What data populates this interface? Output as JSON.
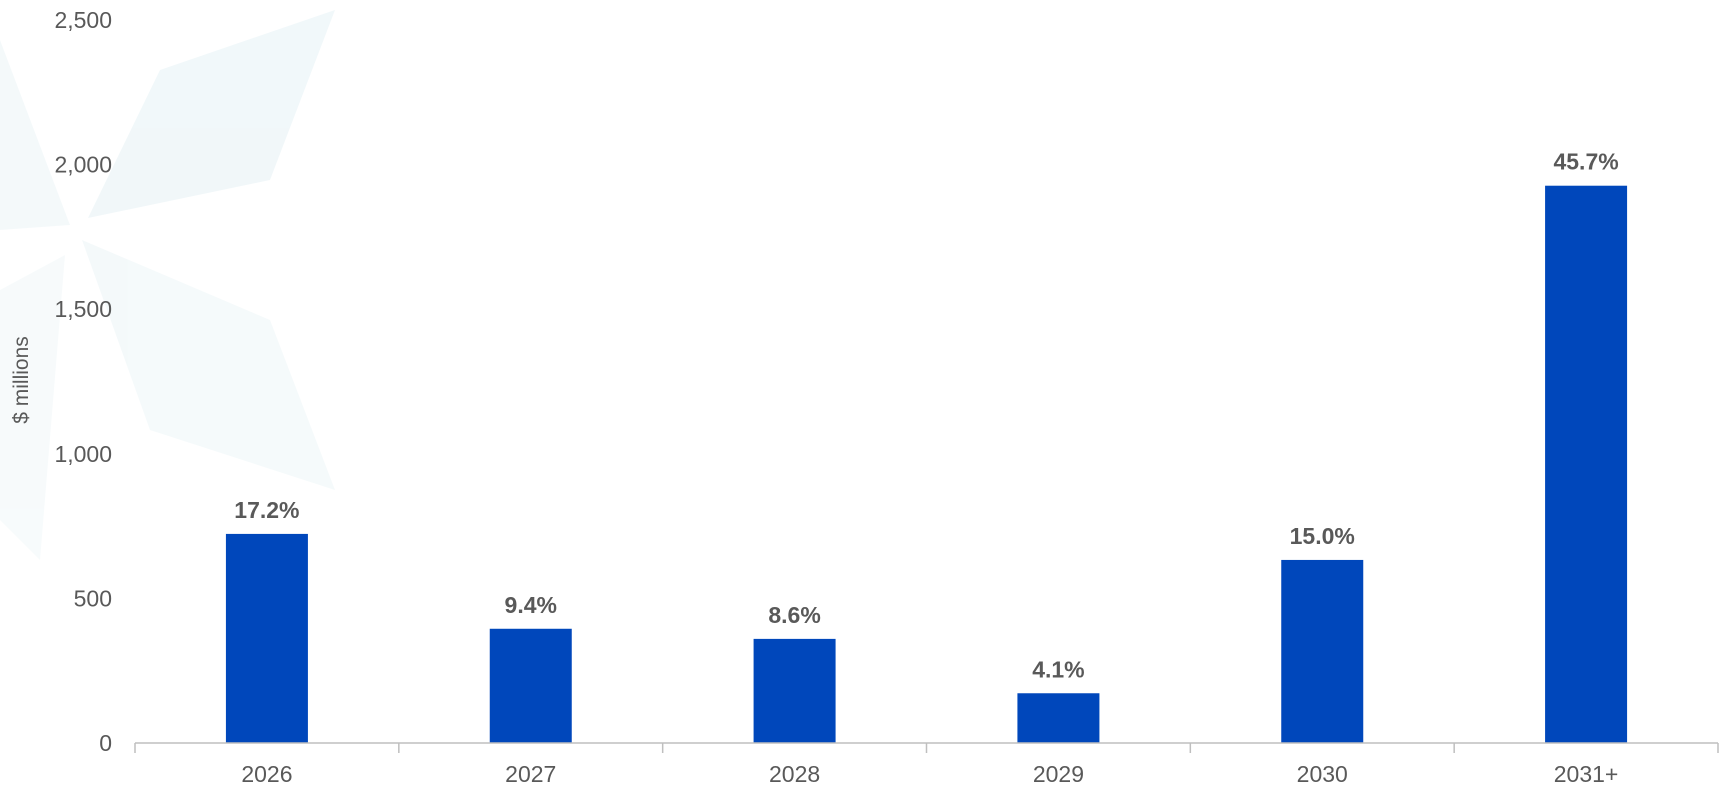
{
  "chart_data": {
    "type": "bar",
    "categories": [
      "2026",
      "2027",
      "2028",
      "2029",
      "2030",
      "2031+"
    ],
    "values": [
      723,
      395,
      360,
      172,
      633,
      1927
    ],
    "data_labels": [
      "17.2%",
      "9.4%",
      "8.6%",
      "4.1%",
      "15.0%",
      "45.7%"
    ],
    "title": "",
    "xlabel": "",
    "ylabel": "$ millions",
    "ylim": [
      0,
      2500
    ],
    "yticks": [
      0,
      500,
      1000,
      1500,
      2000,
      2500
    ],
    "ytick_labels": [
      "0",
      "500",
      "1,000",
      "1,500",
      "2,000",
      "2,500"
    ],
    "grid": false,
    "legend": "none",
    "colors": {
      "bar": "#0047BB",
      "text": "#595959",
      "axis": "#BFBFBF",
      "watermark": "#E8F3F6"
    }
  }
}
